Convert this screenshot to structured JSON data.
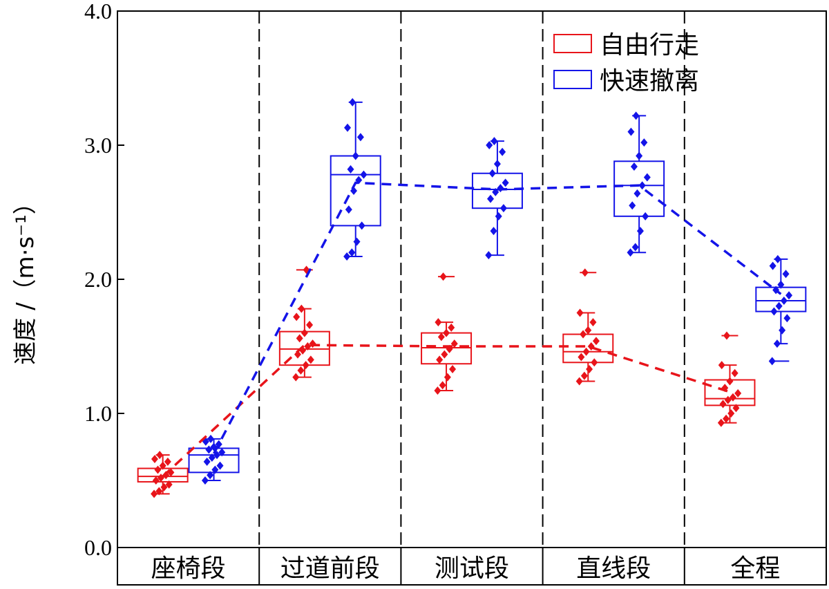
{
  "chart_data": {
    "type": "box",
    "ylabel": "速度 /（m·s⁻¹）",
    "ylim": [
      0,
      4
    ],
    "yticks": [
      "0.0",
      "1.0",
      "2.0",
      "3.0",
      "4.0"
    ],
    "categories": [
      "座椅段",
      "过道前段",
      "测试段",
      "直线段",
      "全程"
    ],
    "grid": false,
    "legend_position": "top-right",
    "series": [
      {
        "name": "自由行走",
        "color": "#e8141a",
        "boxes": [
          {
            "q1": 0.49,
            "median": 0.53,
            "q3": 0.59,
            "min": 0.4,
            "max": 0.69
          },
          {
            "q1": 1.36,
            "median": 1.48,
            "q3": 1.61,
            "min": 1.27,
            "max": 1.78
          },
          {
            "q1": 1.37,
            "median": 1.49,
            "q3": 1.6,
            "min": 1.17,
            "max": 1.68
          },
          {
            "q1": 1.38,
            "median": 1.46,
            "q3": 1.59,
            "min": 1.24,
            "max": 1.75
          },
          {
            "q1": 1.06,
            "median": 1.11,
            "q3": 1.25,
            "min": 0.93,
            "max": 1.36
          }
        ],
        "outliers": [
          [],
          [
            2.07
          ],
          [
            2.02
          ],
          [
            2.05
          ],
          [
            1.58
          ]
        ],
        "means": [
          0.53,
          1.51,
          1.5,
          1.5,
          1.16
        ],
        "points": [
          [
            0.4,
            0.42,
            0.45,
            0.47,
            0.5,
            0.52,
            0.54,
            0.56,
            0.58,
            0.61,
            0.64,
            0.66,
            0.69
          ],
          [
            1.27,
            1.32,
            1.36,
            1.4,
            1.44,
            1.47,
            1.5,
            1.52,
            1.56,
            1.6,
            1.66,
            1.72,
            1.78,
            2.07
          ],
          [
            1.17,
            1.21,
            1.27,
            1.33,
            1.4,
            1.44,
            1.48,
            1.52,
            1.57,
            1.6,
            1.64,
            1.68,
            2.02
          ],
          [
            1.24,
            1.28,
            1.33,
            1.38,
            1.42,
            1.46,
            1.5,
            1.54,
            1.59,
            1.62,
            1.68,
            1.75,
            2.05
          ],
          [
            0.93,
            0.96,
            1.0,
            1.04,
            1.07,
            1.1,
            1.12,
            1.15,
            1.19,
            1.24,
            1.3,
            1.36,
            1.58
          ]
        ]
      },
      {
        "name": "快速撤离",
        "color": "#1414e8",
        "boxes": [
          {
            "q1": 0.56,
            "median": 0.69,
            "q3": 0.74,
            "min": 0.5,
            "max": 0.81
          },
          {
            "q1": 2.4,
            "median": 2.78,
            "q3": 2.92,
            "min": 2.17,
            "max": 3.32
          },
          {
            "q1": 2.53,
            "median": 2.67,
            "q3": 2.79,
            "min": 2.18,
            "max": 3.03
          },
          {
            "q1": 2.47,
            "median": 2.7,
            "q3": 2.88,
            "min": 2.2,
            "max": 3.22
          },
          {
            "q1": 1.76,
            "median": 1.84,
            "q3": 1.94,
            "min": 1.52,
            "max": 2.15
          }
        ],
        "outliers": [
          [],
          [],
          [],
          [],
          [
            1.39
          ]
        ],
        "means": [
          0.7,
          2.72,
          2.67,
          2.7,
          1.89
        ],
        "points": [
          [
            0.5,
            0.54,
            0.58,
            0.61,
            0.64,
            0.67,
            0.69,
            0.71,
            0.73,
            0.75,
            0.77,
            0.79,
            0.81
          ],
          [
            2.17,
            2.2,
            2.28,
            2.4,
            2.52,
            2.66,
            2.74,
            2.78,
            2.82,
            2.92,
            3.06,
            3.13,
            3.32
          ],
          [
            2.18,
            2.36,
            2.47,
            2.53,
            2.6,
            2.65,
            2.68,
            2.72,
            2.79,
            2.86,
            2.95,
            3.0,
            3.03
          ],
          [
            2.2,
            2.24,
            2.36,
            2.47,
            2.55,
            2.64,
            2.7,
            2.76,
            2.84,
            2.92,
            3.02,
            3.1,
            3.22
          ],
          [
            1.39,
            1.52,
            1.62,
            1.71,
            1.76,
            1.8,
            1.84,
            1.88,
            1.92,
            1.96,
            2.04,
            2.1,
            2.15
          ]
        ]
      }
    ]
  }
}
